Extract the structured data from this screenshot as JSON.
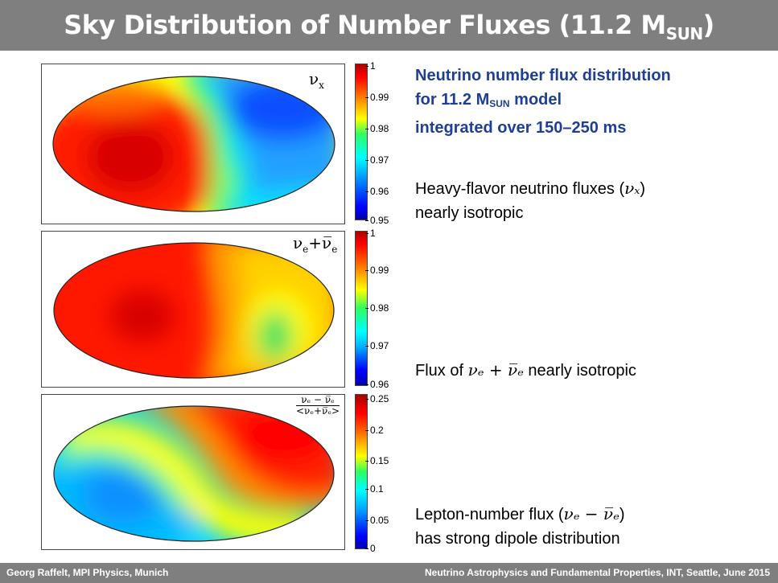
{
  "title": {
    "main": "Sky Distribution of Number Fluxes (11.2 M",
    "sub": "SUN",
    "close": ")"
  },
  "panels": [
    {
      "label_main": "ν",
      "label_sub": "x",
      "colorbar_ticks": [
        "1",
        "0.99",
        "0.98",
        "0.97",
        "0.96",
        "0.95"
      ]
    },
    {
      "label_main": "ν",
      "label_sub": "e",
      "label_plus": "+",
      "label_main2": "ν̅",
      "label_sub2": "e",
      "colorbar_ticks": [
        "1",
        "0.99",
        "0.98",
        "0.97",
        "0.96"
      ]
    },
    {
      "label_num": "νₑ − ν̅ₑ",
      "label_den": "<νₑ+ν̅ₑ>",
      "colorbar_ticks": [
        "0.25",
        "0.2",
        "0.15",
        "0.1",
        "0.05",
        "0"
      ]
    }
  ],
  "heading": {
    "line1": "Neutrino number flux distribution",
    "line2_a": "for 11.2 M",
    "line2_sub": "SUN",
    "line2_b": " model",
    "line3": "integrated over 150–250 ms"
  },
  "notes": {
    "heavy_a": "Heavy-flavor neutrino fluxes (",
    "heavy_math": "νₓ",
    "heavy_b": ")",
    "heavy_line2": "nearly isotropic",
    "flux_a": "Flux of ",
    "flux_math": "νₑ + ν̅ₑ",
    "flux_b": " nearly isotropic",
    "lepton_a": "Lepton-number flux (",
    "lepton_math": "νₑ − ν̅ₑ",
    "lepton_b": ")",
    "lepton_line2": "has strong dipole distribution"
  },
  "footer": {
    "left": "Georg Raffelt, MPI Physics, Munich",
    "right": "Neutrino Astrophysics and Fundamental Properties, INT, Seattle, June 2015"
  },
  "colors": {
    "title_bg": "#7f7f7f",
    "heading_blue": "#1f3f97"
  }
}
